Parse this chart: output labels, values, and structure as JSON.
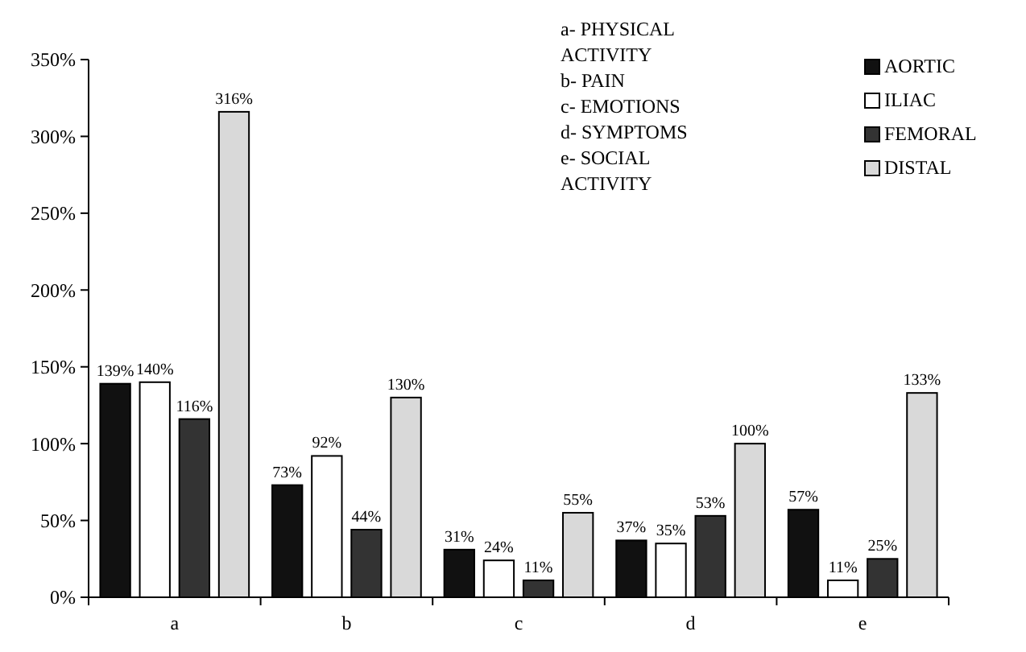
{
  "chart_data": {
    "type": "bar",
    "categories": [
      "a",
      "b",
      "c",
      "d",
      "e"
    ],
    "series": [
      {
        "name": "AORTIC",
        "color": "#111111",
        "values": [
          139,
          73,
          31,
          37,
          57
        ],
        "value_labels": [
          "139%",
          "73%",
          "31%",
          "37%",
          "57%"
        ]
      },
      {
        "name": "ILIAC",
        "color": "#ffffff",
        "values": [
          140,
          92,
          24,
          35,
          11
        ],
        "value_labels": [
          "140%",
          "92%",
          "24%",
          "35%",
          "11%"
        ]
      },
      {
        "name": "FEMORAL",
        "color": "#333333",
        "values": [
          116,
          44,
          11,
          53,
          25
        ],
        "value_labels": [
          "116%",
          "44%",
          "11%",
          "53%",
          "25%"
        ]
      },
      {
        "name": "DISTAL",
        "color": "#d9d9d9",
        "values": [
          316,
          130,
          55,
          100,
          133
        ],
        "value_labels": [
          "316%",
          "130%",
          "55%",
          "100%",
          "133%"
        ]
      }
    ],
    "ylim": [
      0,
      350
    ],
    "yticks": [
      {
        "value": 0,
        "label": "0%"
      },
      {
        "value": 50,
        "label": "50%"
      },
      {
        "value": 100,
        "label": "100%"
      },
      {
        "value": 150,
        "label": "150%"
      },
      {
        "value": 200,
        "label": "200%"
      },
      {
        "value": 250,
        "label": "250%"
      },
      {
        "value": 300,
        "label": "300%"
      },
      {
        "value": 350,
        "label": "350%"
      }
    ],
    "annotations": [
      "a- PHYSICAL ACTIVITY",
      "b- PAIN",
      "c- EMOTIONS",
      "d- SYMPTOMS",
      "e- SOCIAL ACTIVITY"
    ],
    "legend": "top right",
    "grid": false
  }
}
